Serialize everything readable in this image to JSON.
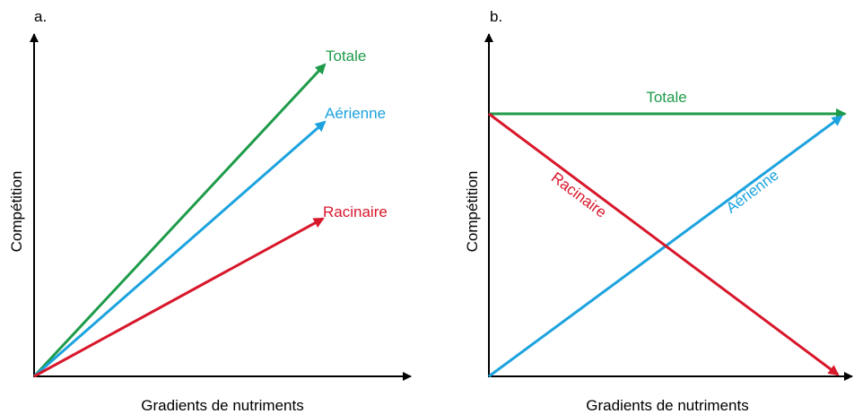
{
  "panels": [
    {
      "label": "a.",
      "x_axis_label": "Gradients de nutriments",
      "y_axis_label": "Compétition",
      "lines": [
        {
          "label": "Totale"
        },
        {
          "label": "Aérienne"
        },
        {
          "label": "Racinaire"
        }
      ]
    },
    {
      "label": "b.",
      "x_axis_label": "Gradients de nutriments",
      "y_axis_label": "Compétition",
      "lines": [
        {
          "label": "Totale"
        },
        {
          "label": "Aérienne"
        },
        {
          "label": "Racinaire"
        }
      ]
    }
  ]
}
